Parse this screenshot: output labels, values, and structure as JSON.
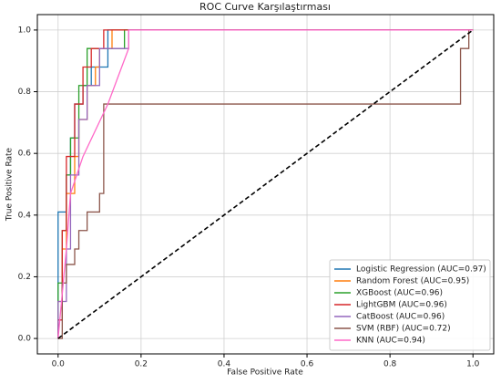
{
  "chart_data": {
    "type": "line",
    "title": "ROC Curve Karşılaştırması",
    "x_label": "False Positive Rate",
    "y_label": "True Positive Rate",
    "xlim": [
      -0.05,
      1.05
    ],
    "ylim": [
      -0.05,
      1.05
    ],
    "xticks": [
      {
        "value": 0,
        "label": "0.0"
      },
      {
        "value": 0.2,
        "label": "0.2"
      },
      {
        "value": 0.4,
        "label": "0.4"
      },
      {
        "value": 0.6,
        "label": "0.6"
      },
      {
        "value": 0.8,
        "label": "0.8"
      },
      {
        "value": 1,
        "label": "1.0"
      }
    ],
    "yticks": [
      {
        "value": 0,
        "label": "0.0"
      },
      {
        "value": 0.2,
        "label": "0.2"
      },
      {
        "value": 0.4,
        "label": "0.4"
      },
      {
        "value": 0.6,
        "label": "0.6"
      },
      {
        "value": 0.8,
        "label": "0.8"
      },
      {
        "value": 1,
        "label": "1.0"
      }
    ],
    "grid": true,
    "legend": "lower right",
    "reference_line": {
      "x": [
        0,
        1
      ],
      "values": [
        0,
        1
      ],
      "color": "#000000",
      "dash": true
    },
    "series": [
      {
        "name": "Logistic Regression (AUC=0.97)",
        "color": "#1f77b4",
        "x": [
          0,
          0,
          0.02,
          0.02,
          0.03,
          0.03,
          0.04,
          0.04,
          0.06,
          0.06,
          0.08,
          0.08,
          0.12,
          0.12,
          0.16,
          1
        ],
        "values": [
          0,
          0.41,
          0.41,
          0.53,
          0.53,
          0.65,
          0.65,
          0.76,
          0.76,
          0.82,
          0.82,
          0.88,
          0.88,
          1,
          1,
          1
        ]
      },
      {
        "name": "Random Forest (AUC=0.95)",
        "color": "#ff7f0e",
        "x": [
          0,
          0,
          0.01,
          0.01,
          0.02,
          0.02,
          0.04,
          0.04,
          0.05,
          0.05,
          0.07,
          0.07,
          0.09,
          0.09,
          0.1,
          0.1,
          0.13,
          0.13,
          1
        ],
        "values": [
          0,
          0.12,
          0.12,
          0.29,
          0.29,
          0.47,
          0.47,
          0.59,
          0.59,
          0.71,
          0.71,
          0.82,
          0.82,
          0.88,
          0.88,
          0.94,
          0.94,
          1,
          1
        ]
      },
      {
        "name": "XGBoost (AUC=0.96)",
        "color": "#2ca02c",
        "x": [
          0,
          0,
          0.01,
          0.01,
          0.02,
          0.02,
          0.03,
          0.03,
          0.05,
          0.05,
          0.07,
          0.07,
          0.16,
          0.16,
          1
        ],
        "values": [
          0,
          0.18,
          0.18,
          0.35,
          0.35,
          0.53,
          0.53,
          0.65,
          0.65,
          0.82,
          0.82,
          0.94,
          0.94,
          1,
          1
        ]
      },
      {
        "name": "LightGBM (AUC=0.96)",
        "color": "#d62728",
        "x": [
          0,
          0,
          0.01,
          0.01,
          0.02,
          0.02,
          0.04,
          0.04,
          0.06,
          0.06,
          0.08,
          0.08,
          0.11,
          0.11,
          1
        ],
        "values": [
          0,
          0.06,
          0.06,
          0.35,
          0.35,
          0.59,
          0.59,
          0.76,
          0.76,
          0.88,
          0.88,
          0.94,
          0.94,
          1,
          1
        ]
      },
      {
        "name": "CatBoost (AUC=0.96)",
        "color": "#9467bd",
        "x": [
          0,
          0,
          0.02,
          0.02,
          0.03,
          0.03,
          0.05,
          0.05,
          0.07,
          0.07,
          0.1,
          0.1,
          0.17,
          0.17,
          1
        ],
        "values": [
          0,
          0.12,
          0.12,
          0.29,
          0.29,
          0.53,
          0.53,
          0.71,
          0.71,
          0.82,
          0.82,
          0.94,
          0.94,
          1,
          1
        ]
      },
      {
        "name": "SVM (RBF) (AUC=0.72)",
        "color": "#8c564b",
        "x": [
          0,
          0.01,
          0.01,
          0.02,
          0.02,
          0.04,
          0.04,
          0.05,
          0.05,
          0.07,
          0.07,
          0.1,
          0.1,
          0.11,
          0.11,
          0.97,
          0.97,
          0.99,
          0.99,
          1
        ],
        "values": [
          0,
          0,
          0.18,
          0.18,
          0.24,
          0.24,
          0.29,
          0.29,
          0.35,
          0.35,
          0.41,
          0.41,
          0.47,
          0.47,
          0.76,
          0.76,
          0.94,
          0.94,
          1,
          1
        ]
      },
      {
        "name": "KNN (AUC=0.94)",
        "color": "#ff69c8",
        "x": [
          0,
          0.02,
          0.03,
          0.06,
          0.12,
          0.17,
          0.17,
          1
        ],
        "values": [
          0,
          0.29,
          0.47,
          0.59,
          0.76,
          0.94,
          1,
          1
        ]
      }
    ]
  }
}
